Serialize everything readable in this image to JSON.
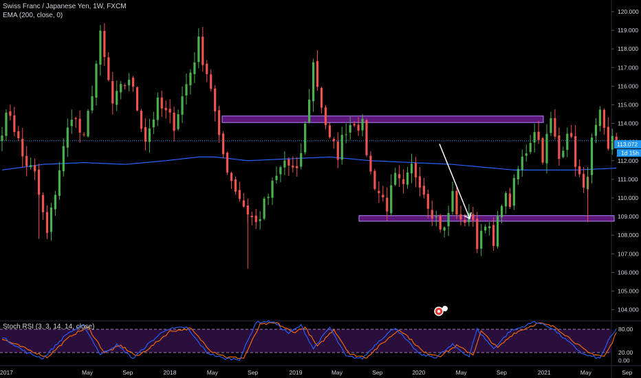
{
  "header": {
    "title": "Swiss Franc / Japanese Yen, 1W, FXCM",
    "indicator": "EMA (200, close, 0)",
    "oscillator": "Stoch RSI (3, 3, 14, 14, close)"
  },
  "price_tag": {
    "value": "113.072",
    "countdown": "1d 15h"
  },
  "chart_data": [
    {
      "type": "candlestick",
      "title": "Swiss Franc / Japanese Yen, 1W, FXCM",
      "ylim": [
        104.0,
        120.5
      ],
      "y_ticks": [
        "120.000",
        "119.000",
        "118.000",
        "117.000",
        "116.000",
        "115.000",
        "114.000",
        "113.000",
        "112.000",
        "111.000",
        "110.000",
        "109.000",
        "108.000",
        "107.000",
        "106.000",
        "105.000",
        "104.000"
      ],
      "x_ticks": [
        "2017",
        "May",
        "Sep",
        "2018",
        "May",
        "Sep",
        "2019",
        "May",
        "Sep",
        "2020",
        "May",
        "Sep",
        "2021",
        "May",
        "Sep"
      ],
      "anchors": [
        [
          0,
          113.8
        ],
        [
          2,
          114.6
        ],
        [
          5,
          112.2
        ],
        [
          8,
          111.2
        ],
        [
          11,
          108.0
        ],
        [
          14,
          111.6
        ],
        [
          17,
          114.6
        ],
        [
          20,
          113.0
        ],
        [
          24,
          118.6
        ],
        [
          27,
          115.0
        ],
        [
          31,
          116.5
        ],
        [
          35,
          113.2
        ],
        [
          38,
          115.0
        ],
        [
          42,
          114.0
        ],
        [
          46,
          116.8
        ],
        [
          48,
          118.3
        ],
        [
          51,
          116.0
        ],
        [
          53,
          113.0
        ],
        [
          56,
          111.0
        ],
        [
          59,
          109.6
        ],
        [
          62,
          108.6
        ],
        [
          66,
          110.6
        ],
        [
          69,
          112.0
        ],
        [
          72,
          111.2
        ],
        [
          74,
          113.8
        ],
        [
          76,
          117.2
        ],
        [
          78,
          115.0
        ],
        [
          80,
          113.0
        ],
        [
          82,
          112.4
        ],
        [
          84,
          113.8
        ],
        [
          86,
          114.2
        ],
        [
          88,
          113.8
        ],
        [
          90,
          111.3
        ],
        [
          92,
          110.3
        ],
        [
          94,
          109.6
        ],
        [
          96,
          111.0
        ],
        [
          98,
          110.4
        ],
        [
          100,
          111.6
        ],
        [
          102,
          111.0
        ],
        [
          104,
          109.8
        ],
        [
          106,
          108.9
        ],
        [
          108,
          108.2
        ],
        [
          110,
          110.2
        ],
        [
          112,
          108.5
        ],
        [
          114,
          109.3
        ],
        [
          116,
          107.6
        ],
        [
          118,
          108.9
        ],
        [
          120,
          107.3
        ],
        [
          122,
          110.0
        ],
        [
          124,
          109.8
        ],
        [
          126,
          111.5
        ],
        [
          128,
          112.6
        ],
        [
          130,
          113.8
        ],
        [
          132,
          112.3
        ],
        [
          134,
          114.1
        ],
        [
          136,
          112.1
        ],
        [
          138,
          113.8
        ],
        [
          140,
          112.0
        ],
        [
          142,
          110.2
        ],
        [
          144,
          112.9
        ],
        [
          146,
          114.3
        ],
        [
          148,
          112.4
        ],
        [
          149,
          113.4
        ],
        [
          150,
          113.07
        ]
      ],
      "ema_anchors": [
        [
          0,
          111.5
        ],
        [
          10,
          111.8
        ],
        [
          20,
          111.9
        ],
        [
          30,
          111.8
        ],
        [
          40,
          112.0
        ],
        [
          48,
          112.2
        ],
        [
          52,
          112.2
        ],
        [
          60,
          112.0
        ],
        [
          70,
          112.1
        ],
        [
          80,
          112.2
        ],
        [
          90,
          112.0
        ],
        [
          100,
          111.9
        ],
        [
          110,
          111.8
        ],
        [
          120,
          111.6
        ],
        [
          125,
          111.5
        ],
        [
          130,
          111.5
        ],
        [
          135,
          111.5
        ],
        [
          140,
          111.5
        ],
        [
          150,
          111.6
        ]
      ],
      "zones": [
        {
          "name": "resistance",
          "y_from": 114.05,
          "y_to": 114.4,
          "x_from": 75,
          "x_to": 185,
          "color": "#7b1fa2"
        },
        {
          "name": "support",
          "y_from": 108.75,
          "y_to": 109.05,
          "x_from": 122,
          "x_to": 212,
          "color": "#7b1fa2"
        }
      ],
      "projection": {
        "from": [
          150,
          112.9
        ],
        "to": [
          161,
          109.15
        ]
      },
      "current_price": 113.072,
      "colors": {
        "up": "#26a69a",
        "down": "#ef5350",
        "up_bright": "#4caf50",
        "ema": "#2962ff",
        "price_line": "#2196f3"
      }
    },
    {
      "type": "line",
      "title": "Stoch RSI (3, 3, 14, 14, close)",
      "ylim": [
        -10,
        105
      ],
      "y_ticks": [
        "80.00",
        "20.00",
        "0.00"
      ],
      "band": [
        20,
        80
      ],
      "k_anchors": [
        [
          0,
          60
        ],
        [
          6,
          20
        ],
        [
          10,
          5
        ],
        [
          16,
          70
        ],
        [
          20,
          90
        ],
        [
          24,
          15
        ],
        [
          28,
          40
        ],
        [
          32,
          5
        ],
        [
          36,
          45
        ],
        [
          40,
          80
        ],
        [
          45,
          85
        ],
        [
          50,
          20
        ],
        [
          54,
          5
        ],
        [
          58,
          3
        ],
        [
          62,
          98
        ],
        [
          66,
          100
        ],
        [
          70,
          70
        ],
        [
          73,
          90
        ],
        [
          76,
          30
        ],
        [
          80,
          85
        ],
        [
          84,
          10
        ],
        [
          88,
          5
        ],
        [
          92,
          50
        ],
        [
          96,
          85
        ],
        [
          98,
          60
        ],
        [
          102,
          15
        ],
        [
          106,
          8
        ],
        [
          110,
          40
        ],
        [
          114,
          10
        ],
        [
          116,
          80
        ],
        [
          120,
          30
        ],
        [
          124,
          75
        ],
        [
          128,
          90
        ],
        [
          130,
          100
        ],
        [
          134,
          85
        ],
        [
          138,
          50
        ],
        [
          142,
          15
        ],
        [
          146,
          5
        ],
        [
          148,
          50
        ],
        [
          150,
          80
        ]
      ],
      "d_anchors": [
        [
          0,
          55
        ],
        [
          7,
          25
        ],
        [
          11,
          8
        ],
        [
          17,
          65
        ],
        [
          21,
          85
        ],
        [
          25,
          20
        ],
        [
          29,
          38
        ],
        [
          33,
          10
        ],
        [
          37,
          40
        ],
        [
          41,
          75
        ],
        [
          46,
          82
        ],
        [
          51,
          25
        ],
        [
          55,
          8
        ],
        [
          59,
          6
        ],
        [
          63,
          92
        ],
        [
          67,
          96
        ],
        [
          71,
          72
        ],
        [
          74,
          85
        ],
        [
          77,
          35
        ],
        [
          81,
          80
        ],
        [
          85,
          15
        ],
        [
          89,
          8
        ],
        [
          93,
          45
        ],
        [
          97,
          80
        ],
        [
          99,
          62
        ],
        [
          103,
          20
        ],
        [
          107,
          12
        ],
        [
          111,
          38
        ],
        [
          115,
          15
        ],
        [
          117,
          75
        ],
        [
          121,
          32
        ],
        [
          125,
          70
        ],
        [
          129,
          88
        ],
        [
          131,
          96
        ],
        [
          135,
          86
        ],
        [
          139,
          54
        ],
        [
          143,
          20
        ],
        [
          147,
          10
        ],
        [
          149,
          45
        ],
        [
          150,
          75
        ]
      ],
      "colors": {
        "k": "#2962ff",
        "d": "#ff6d00",
        "band_fill": "#2a0f3d",
        "band_line": "#9e7fb8"
      }
    }
  ]
}
